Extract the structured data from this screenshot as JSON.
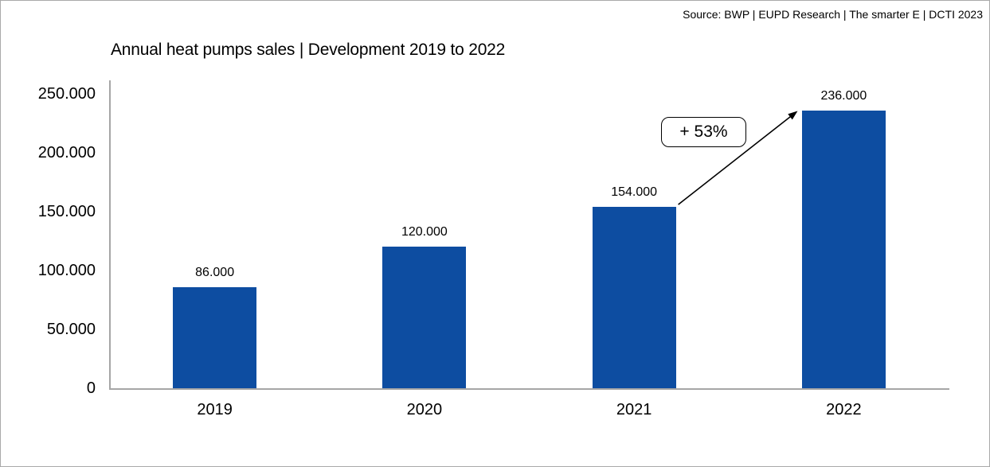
{
  "page": {
    "source_text": "Source: BWP | EUPD Research | The smarter E | DCTI 2023"
  },
  "chart_data": {
    "type": "bar",
    "title": "Annual heat pumps sales | Development 2019 to 2022",
    "categories": [
      "2019",
      "2020",
      "2021",
      "2022"
    ],
    "values": [
      86000,
      120000,
      154000,
      236000
    ],
    "value_labels": [
      "86.000",
      "120.000",
      "154.000",
      "236.000"
    ],
    "y_tick_values": [
      0,
      50000,
      100000,
      150000,
      200000,
      250000
    ],
    "y_tick_labels": [
      "0",
      "50.000",
      "100.000",
      "150.000",
      "200.000",
      "250.000"
    ],
    "ylim": [
      0,
      250000
    ],
    "xlabel": "",
    "ylabel": "",
    "grid": false,
    "legend_position": "none",
    "bar_color": "#0d4da1",
    "axis_color": "#a6a6a6",
    "annotation": {
      "label": "+ 53%",
      "from_category": "2021",
      "to_category": "2022"
    }
  }
}
